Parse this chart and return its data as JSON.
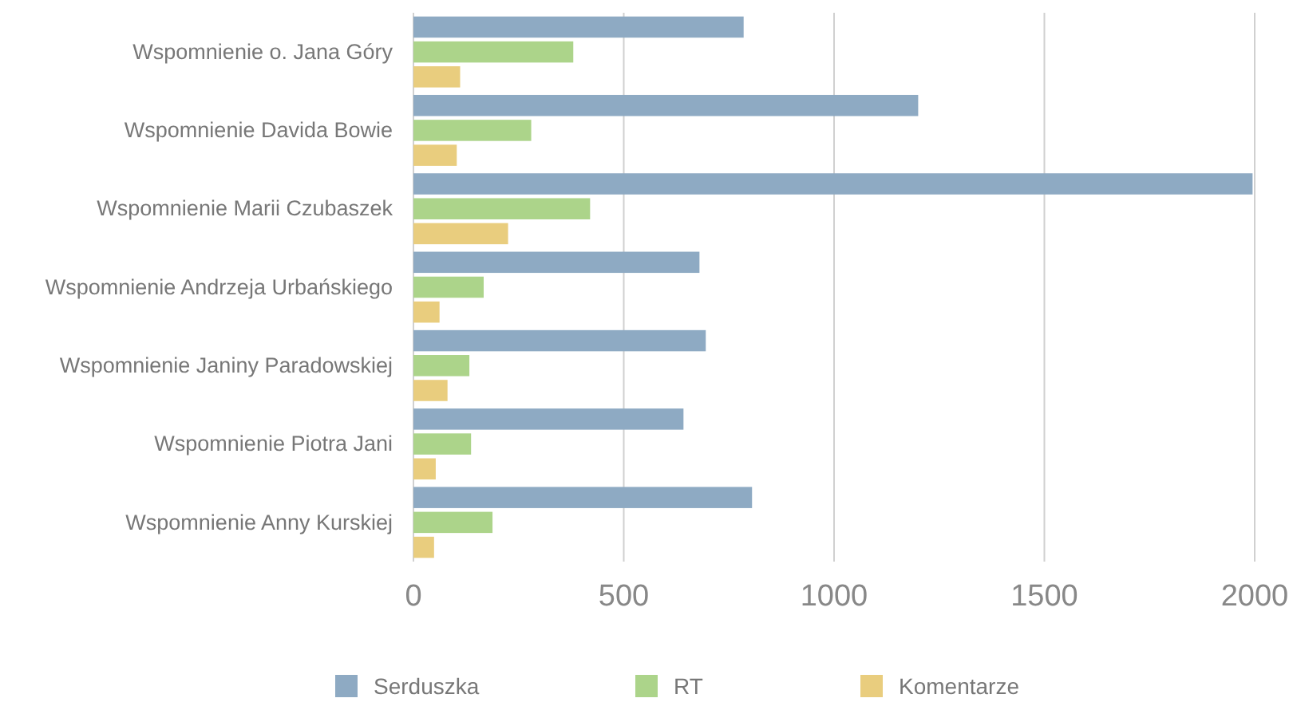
{
  "chart_data": {
    "type": "bar",
    "orientation": "horizontal",
    "categories": [
      "Wspomnienie o. Jana Góry",
      "Wspomnienie Davida Bowie",
      "Wspomnienie Marii Czubaszek",
      "Wspomnienie Andrzeja Urbańskiego",
      "Wspomnienie Janiny Paradowskiej",
      "Wspomnienie Piotra Jani",
      "Wspomnienie Anny Kurskiej"
    ],
    "series": [
      {
        "name": "Serduszka",
        "color": "#8eaac3",
        "values": [
          785,
          1200,
          1995,
          680,
          695,
          642,
          805
        ]
      },
      {
        "name": "RT",
        "color": "#acd48a",
        "values": [
          380,
          280,
          420,
          167,
          133,
          137,
          188
        ]
      },
      {
        "name": "Komentarze",
        "color": "#e9cd7e",
        "values": [
          111,
          103,
          225,
          62,
          81,
          53,
          49
        ]
      }
    ],
    "xlim": [
      0,
      2000
    ],
    "xticks": [
      0,
      500,
      1000,
      1500,
      2000
    ],
    "grid": "x",
    "legend": "bottom"
  }
}
